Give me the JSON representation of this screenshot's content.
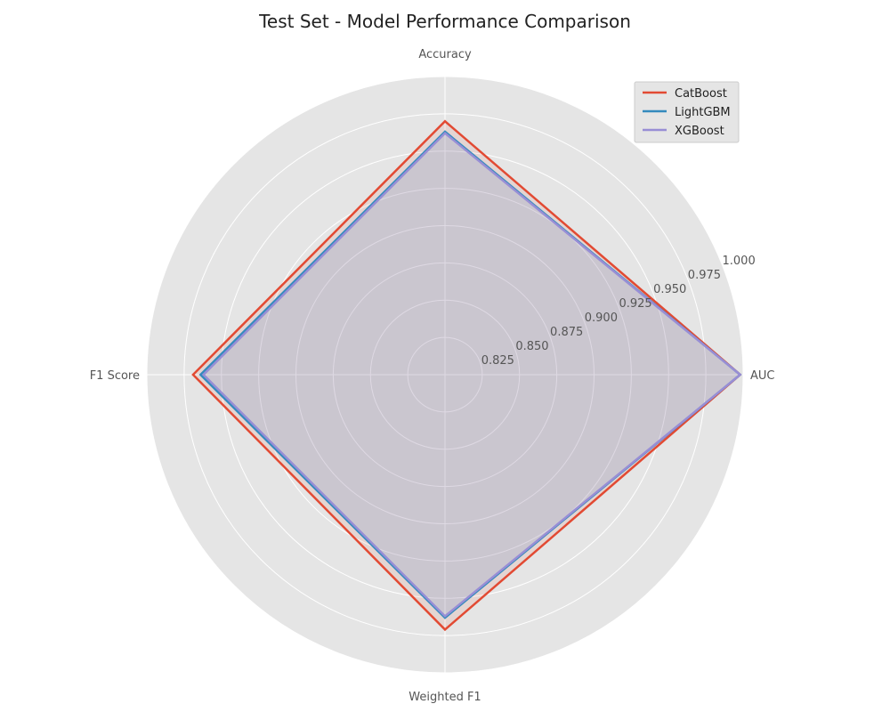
{
  "chart_data": {
    "type": "radar",
    "title": "Test Set - Model Performance Comparison",
    "axes": [
      "AUC",
      "Accuracy",
      "F1 Score",
      "Weighted F1"
    ],
    "rlim": [
      0.8,
      1.0
    ],
    "rticks": [
      0.825,
      0.85,
      0.875,
      0.9,
      0.925,
      0.95,
      0.975,
      1.0
    ],
    "rtick_labels": [
      "0.825",
      "0.850",
      "0.875",
      "0.900",
      "0.925",
      "0.950",
      "0.975",
      "1.000"
    ],
    "grid": true,
    "legend_position": "top-right",
    "series": [
      {
        "name": "CatBoost",
        "color": "#E24A33",
        "values": [
          0.998,
          0.97,
          0.969,
          0.971
        ]
      },
      {
        "name": "LightGBM",
        "color": "#348ABD",
        "values": [
          0.998,
          0.963,
          0.964,
          0.963
        ]
      },
      {
        "name": "XGBoost",
        "color": "#988ED5",
        "values": [
          0.998,
          0.962,
          0.962,
          0.962
        ]
      }
    ]
  }
}
